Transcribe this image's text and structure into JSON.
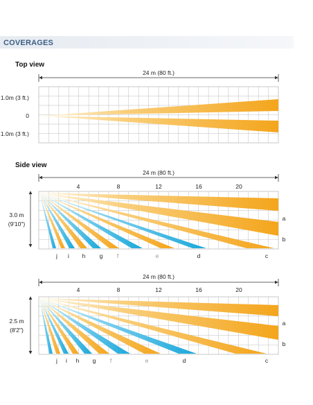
{
  "header": {
    "title": "COVERAGES",
    "band_color": "#e9edf2",
    "title_color": "#3b5d84"
  },
  "colors": {
    "orange": "#f4a51c",
    "blue": "#1aa8da",
    "grid": "#bdbdbd"
  },
  "top_view": {
    "title": "Top view",
    "range_label": "24 m (80 ft.)",
    "row_labels": [
      "1.0m (3 ft.)",
      "0",
      "1.0m (3 ft.)"
    ]
  },
  "side_views": [
    {
      "title": "Side view",
      "range_label": "24 m (80 ft.)",
      "scale_ticks": [
        "4",
        "8",
        "12",
        "16",
        "20"
      ],
      "height_label": "3.0 m",
      "height_label_ft": "(9'10\")",
      "zone_letters": [
        "j",
        "i",
        "h",
        "g",
        "f",
        "e",
        "d",
        "c"
      ],
      "beam_labels": [
        "a",
        "b"
      ]
    },
    {
      "title": "",
      "range_label": "24 m (80 ft.)",
      "scale_ticks": [
        "4",
        "8",
        "12",
        "16",
        "20"
      ],
      "height_label": "2.5 m",
      "height_label_ft": "(8'2\")",
      "zone_letters": [
        "j",
        "i",
        "h",
        "g",
        "f",
        "e",
        "d",
        "c"
      ],
      "beam_labels": [
        "a",
        "b"
      ]
    }
  ]
}
